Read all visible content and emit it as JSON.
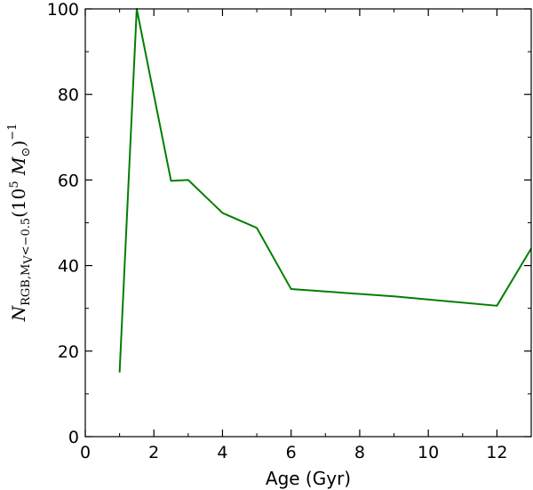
{
  "chart_data": {
    "type": "line",
    "title": "",
    "xlabel": "Age (Gyr)",
    "ylabel": "N_RGB,MV<-0.5 (10^5 M_sun)^-1",
    "ylabel_parts": {
      "main": "N",
      "sub": "RGB,M",
      "subsub": "V",
      "sub_rest": "<−0.5",
      "paren_open": "(10",
      "exp": "5",
      "mass": " M",
      "sun": "⊙",
      "paren_close": ")",
      "outer_exp": "−1"
    },
    "xlim": [
      0,
      13
    ],
    "ylim": [
      0,
      100
    ],
    "xticks": [
      0,
      2,
      4,
      6,
      8,
      10,
      12
    ],
    "yticks": [
      0,
      20,
      40,
      60,
      80,
      100
    ],
    "grid": false,
    "series": [
      {
        "color": "#007f00",
        "x": [
          1.0,
          1.5,
          2.5,
          3.0,
          4.0,
          5.0,
          6.0,
          9.0,
          12.0,
          13.0
        ],
        "y": [
          15,
          100,
          59.8,
          60,
          52.3,
          48.8,
          34.5,
          32.8,
          30.6,
          44
        ]
      }
    ]
  }
}
